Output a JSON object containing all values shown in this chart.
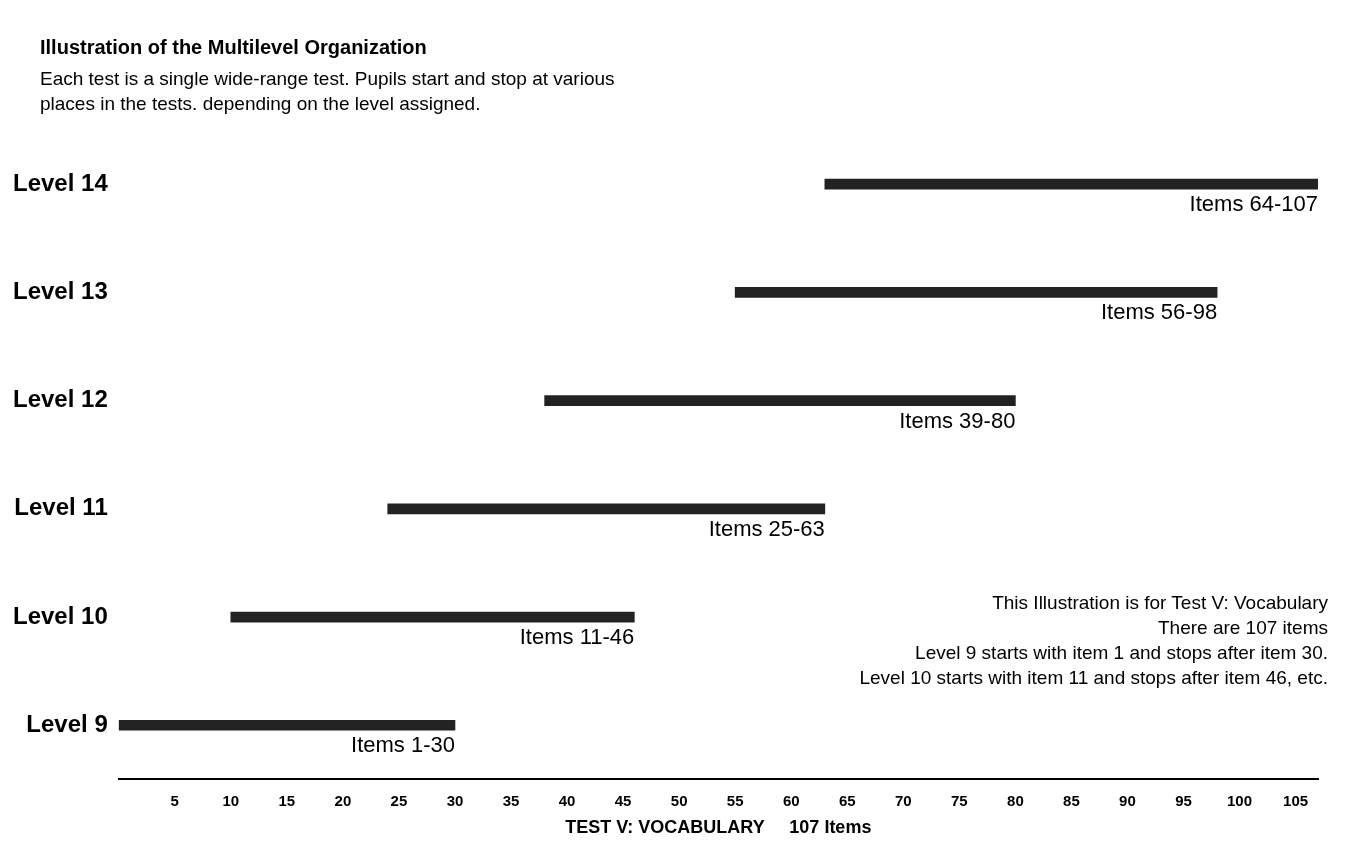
{
  "chart_data": {
    "type": "bar",
    "orientation": "horizontal",
    "title": "Illustration of the Multilevel Organization",
    "subtitle": "Each test is a single wide-range test. Pupils start and stop at various places in the tests. depending on the level assigned.",
    "xlabel": "TEST V: VOCABULARY     107 Items",
    "categories": [
      "Level 14",
      "Level 13",
      "Level 12",
      "Level 11",
      "Level 10",
      "Level 9"
    ],
    "base": [
      63,
      55,
      38,
      24,
      10,
      0
    ],
    "values": [
      44,
      43,
      42,
      39,
      36,
      30
    ],
    "value_labels": [
      "Items 64-107",
      "Items 56-98",
      "Items 39-80",
      "Items 25-63",
      "Items 11-46",
      "Items 1-30"
    ],
    "color": "#222222",
    "xlim": [
      0,
      107
    ],
    "xticks": [
      5,
      10,
      15,
      20,
      25,
      30,
      35,
      40,
      45,
      50,
      55,
      60,
      65,
      70,
      75,
      80,
      85,
      90,
      95,
      100,
      105
    ],
    "grid": false,
    "legend": false,
    "annotations": [
      "This Illustration is for Test V: Vocabulary",
      "There are 107 items",
      "Level 9 starts with item 1 and stops after item 30.",
      "Level 10 starts with item 11 and stops after item 46, etc."
    ]
  }
}
